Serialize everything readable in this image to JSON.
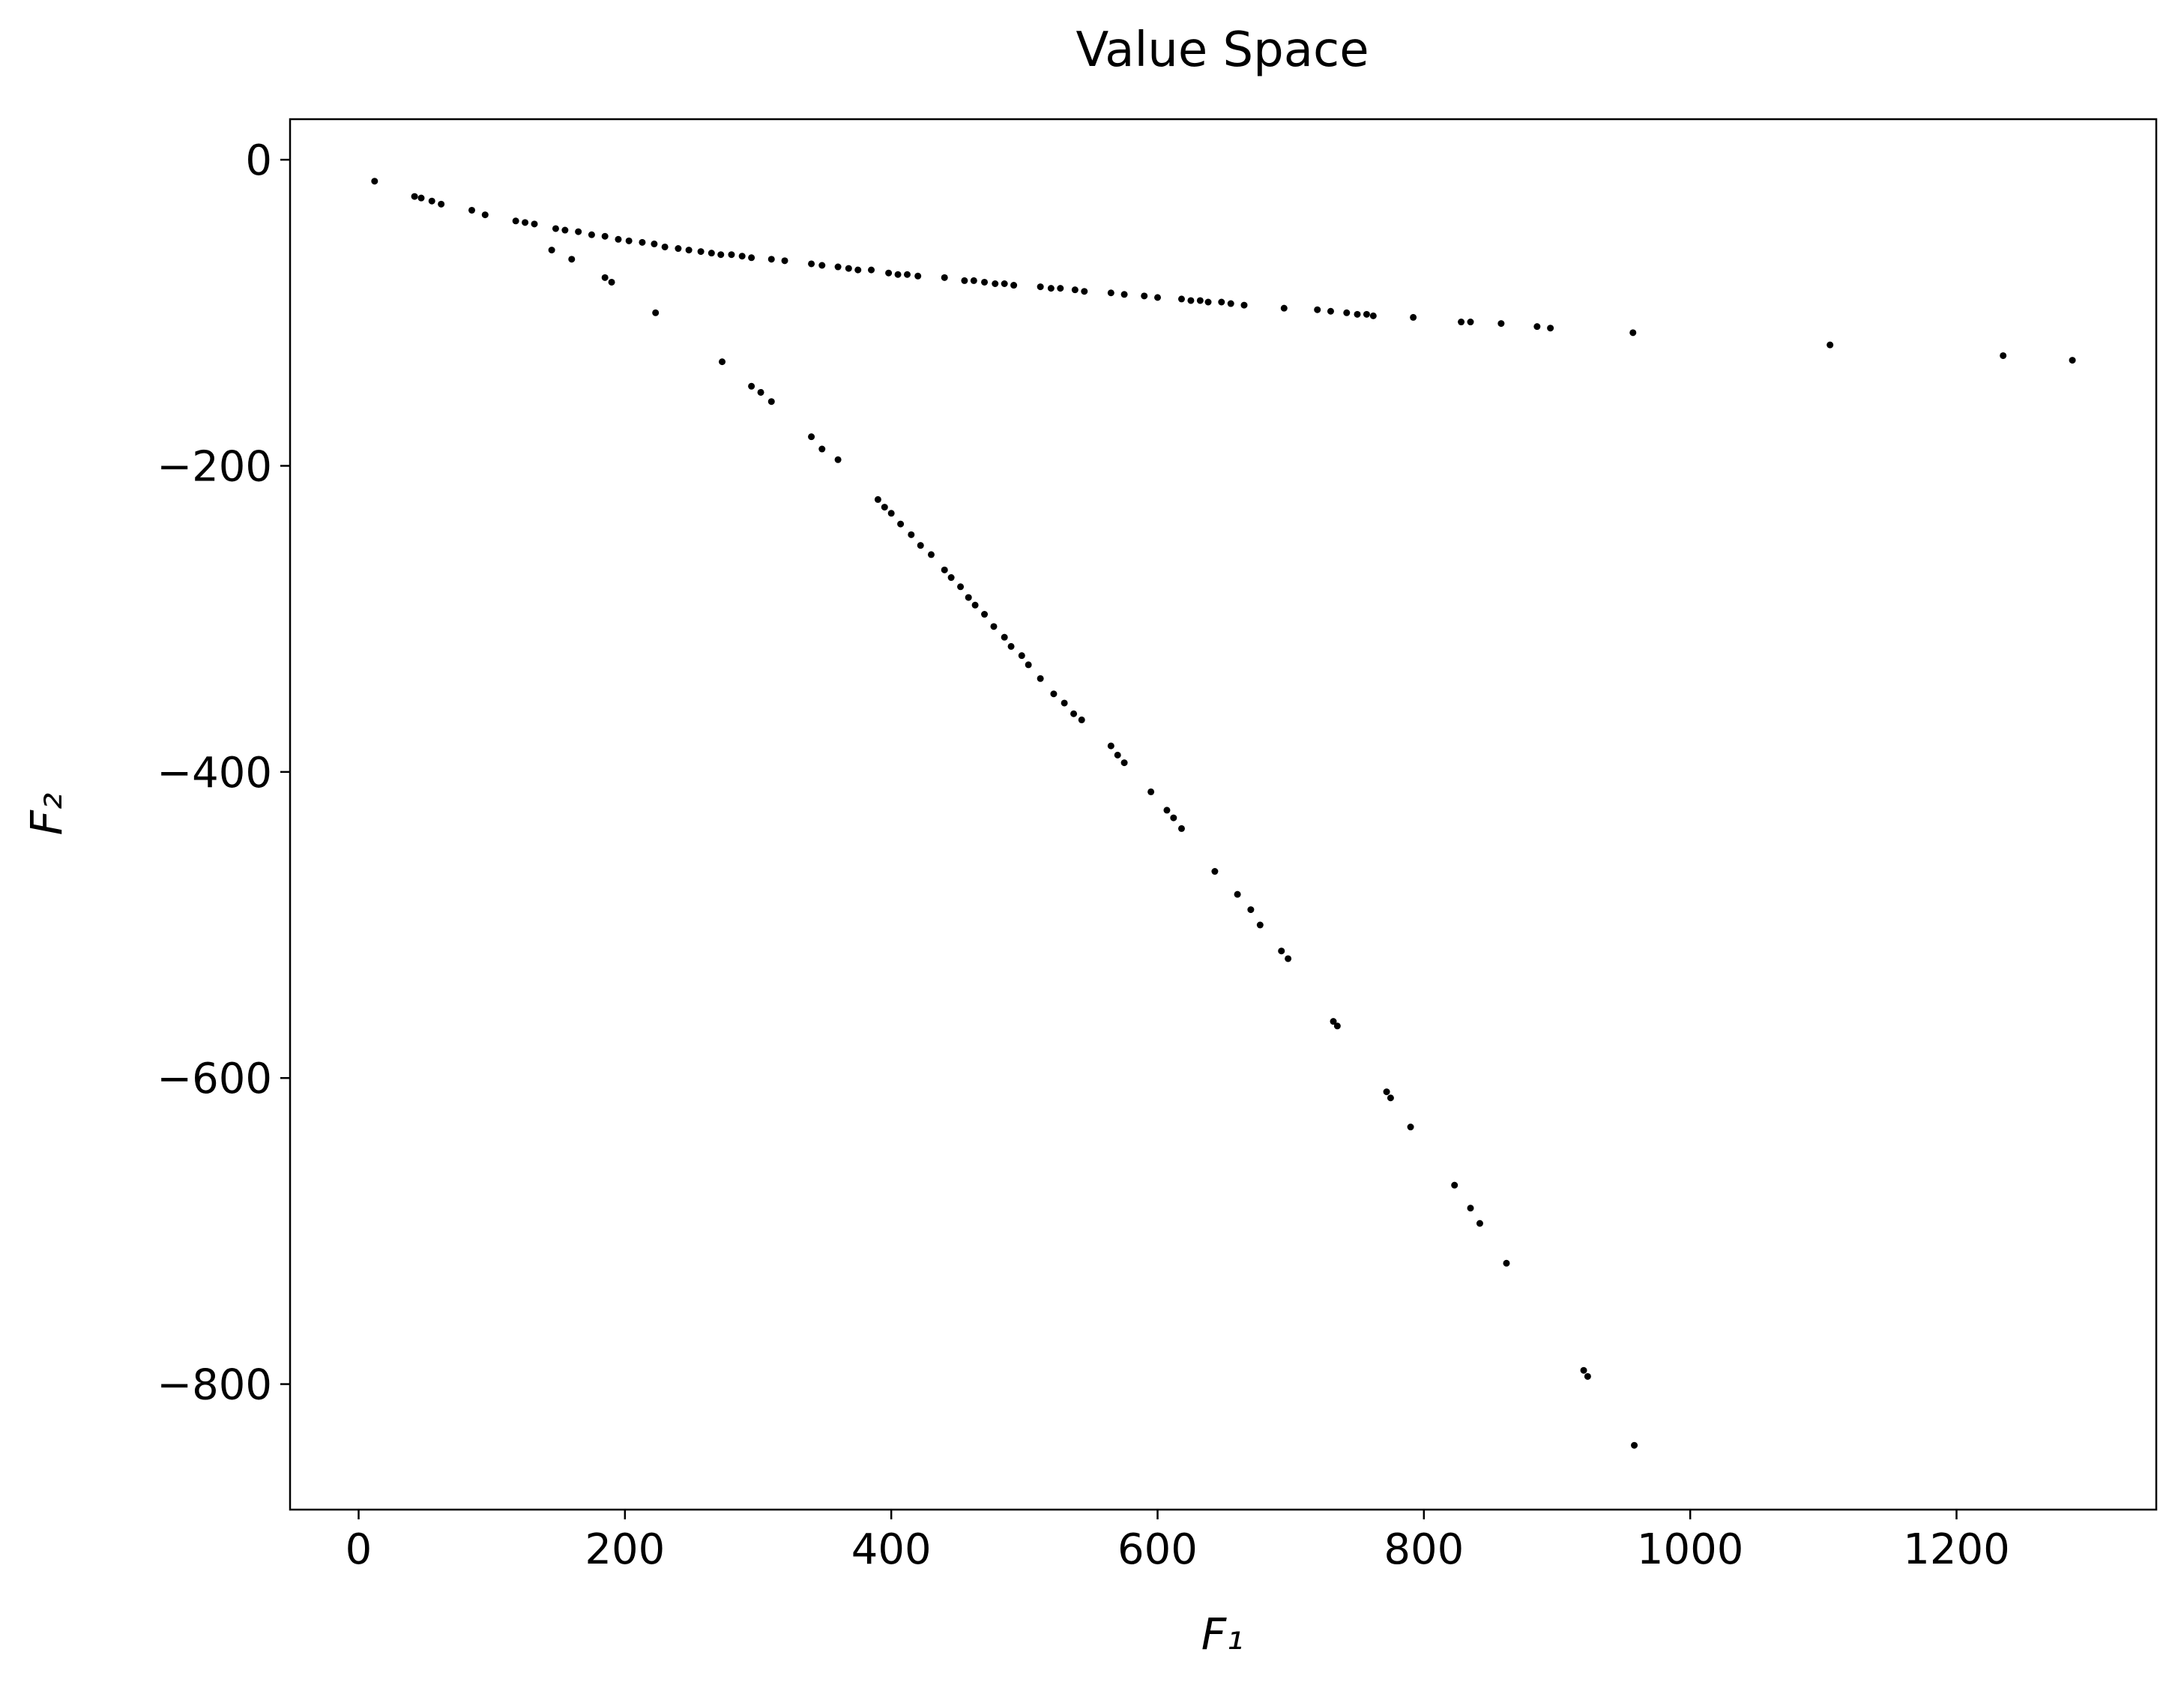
{
  "chart_data": {
    "type": "scatter",
    "title": "Value Space",
    "x_label": "F₁",
    "y_label": "F₂",
    "color": "#000000",
    "x": [
      12,
      42,
      47,
      55,
      62,
      85,
      95,
      118,
      125,
      132,
      148,
      155,
      165,
      175,
      185,
      195,
      203,
      213,
      222,
      230,
      240,
      248,
      257,
      265,
      272,
      280,
      288,
      295,
      310,
      320,
      340,
      348,
      360,
      368,
      375,
      385,
      398,
      405,
      412,
      420,
      440,
      455,
      462,
      470,
      478,
      485,
      492,
      512,
      520,
      527,
      538,
      545,
      565,
      575,
      590,
      600,
      618,
      625,
      632,
      638,
      648,
      655,
      665,
      695,
      720,
      730,
      742,
      750,
      757,
      762,
      792,
      828,
      835,
      858,
      885,
      895,
      957,
      1105,
      1235,
      1287,
      145,
      160,
      185,
      190,
      223,
      273,
      295,
      302,
      310,
      340,
      348,
      360,
      390,
      395,
      400,
      407,
      415,
      422,
      430,
      440,
      445,
      452,
      458,
      463,
      470,
      477,
      485,
      490,
      498,
      503,
      512,
      522,
      530,
      537,
      543,
      565,
      570,
      575,
      595,
      607,
      612,
      618,
      643,
      660,
      670,
      677,
      693,
      698,
      732,
      735,
      772,
      775,
      790,
      823,
      835,
      842,
      862,
      920,
      923,
      958
    ],
    "y": [
      -14,
      -24,
      -25,
      -27,
      -29,
      -33,
      -36,
      -40,
      -41,
      -42,
      -45,
      -46,
      -47,
      -49,
      -50,
      -52,
      -53,
      -54,
      -55,
      -57,
      -58,
      -59,
      -60,
      -61,
      -62,
      -62,
      -63,
      -64,
      -65,
      -66,
      -68,
      -69,
      -70,
      -71,
      -72,
      -72,
      -74,
      -75,
      -75,
      -76,
      -77,
      -79,
      -79,
      -80,
      -81,
      -81,
      -82,
      -83,
      -84,
      -84,
      -85,
      -86,
      -87,
      -88,
      -89,
      -90,
      -91,
      -92,
      -92,
      -93,
      -93,
      -94,
      -95,
      -97,
      -98,
      -99,
      -100,
      -101,
      -101,
      -102,
      -103,
      -106,
      -106,
      -107,
      -109,
      -110,
      -113,
      -121,
      -128,
      -131,
      -59,
      -65,
      -77,
      -80,
      -100,
      -132,
      -148,
      -152,
      -158,
      -181,
      -189,
      -196,
      -222,
      -227,
      -231,
      -238,
      -245,
      -252,
      -258,
      -268,
      -273,
      -279,
      -286,
      -291,
      -297,
      -305,
      -312,
      -318,
      -324,
      -330,
      -339,
      -349,
      -355,
      -362,
      -366,
      -383,
      -389,
      -394,
      -413,
      -425,
      -430,
      -437,
      -465,
      -480,
      -490,
      -500,
      -517,
      -522,
      -563,
      -566,
      -609,
      -613,
      -632,
      -670,
      -685,
      -695,
      -721,
      -791,
      -795,
      -840
    ],
    "xlim": [
      -51.5,
      1350
    ],
    "ylim": [
      -882,
      26.5
    ],
    "xticks": [
      0,
      200,
      400,
      600,
      800,
      1000,
      1200
    ],
    "yticks": [
      0,
      {
        "value": -200,
        "label": "−200"
      },
      {
        "value": -400,
        "label": "−400"
      },
      {
        "value": -600,
        "label": "−600"
      },
      {
        "value": -800,
        "label": "−800"
      }
    ]
  }
}
